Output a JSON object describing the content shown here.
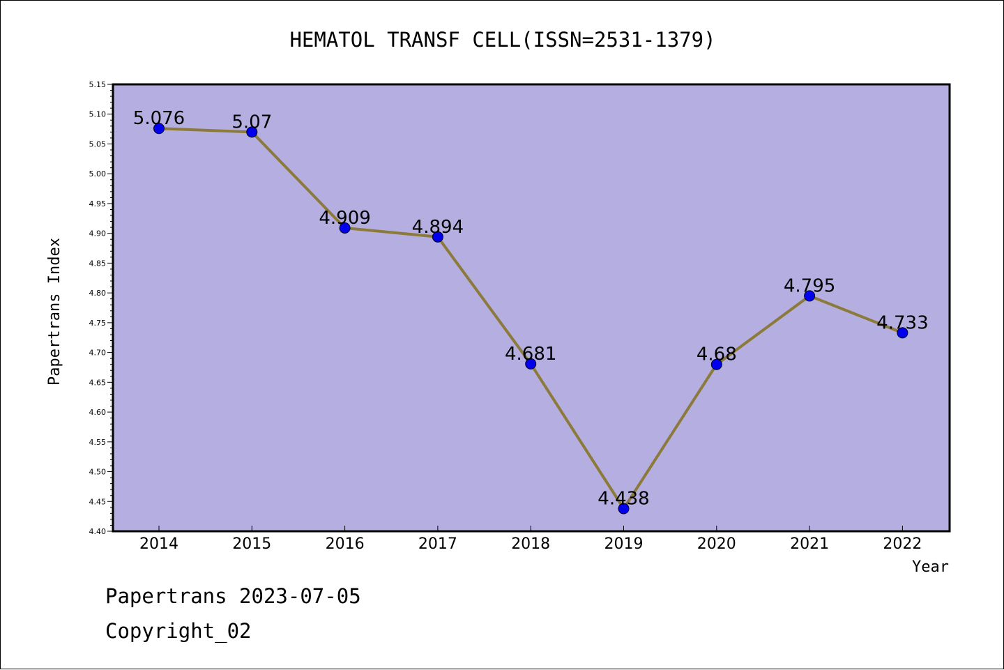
{
  "chart_data": {
    "type": "line",
    "title": "HEMATOL TRANSF CELL(ISSN=2531-1379)",
    "xlabel": "Year",
    "ylabel": "Papertrans Index",
    "categories": [
      "2014",
      "2015",
      "2016",
      "2017",
      "2018",
      "2019",
      "2020",
      "2021",
      "2022"
    ],
    "values": [
      5.076,
      5.07,
      4.909,
      4.894,
      4.681,
      4.438,
      4.68,
      4.795,
      4.733
    ],
    "data_labels": [
      "5.076",
      "5.07",
      "4.909",
      "4.894",
      "4.681",
      "4.438",
      "4.68",
      "4.795",
      "4.733"
    ],
    "ylim": [
      4.4,
      5.15
    ],
    "yticks": [
      "4.40",
      "4.45",
      "4.50",
      "4.55",
      "4.60",
      "4.65",
      "4.70",
      "4.75",
      "4.80",
      "4.85",
      "4.90",
      "4.95",
      "5.00",
      "5.05",
      "5.10",
      "5.15"
    ],
    "grid": false,
    "legend": "none",
    "colors": {
      "plot_background": "#b5aee1",
      "line": "#8b7a3a",
      "marker": "#0000ee"
    }
  },
  "footer": {
    "line1": "Papertrans 2023-07-05",
    "line2": "Copyright_02"
  }
}
